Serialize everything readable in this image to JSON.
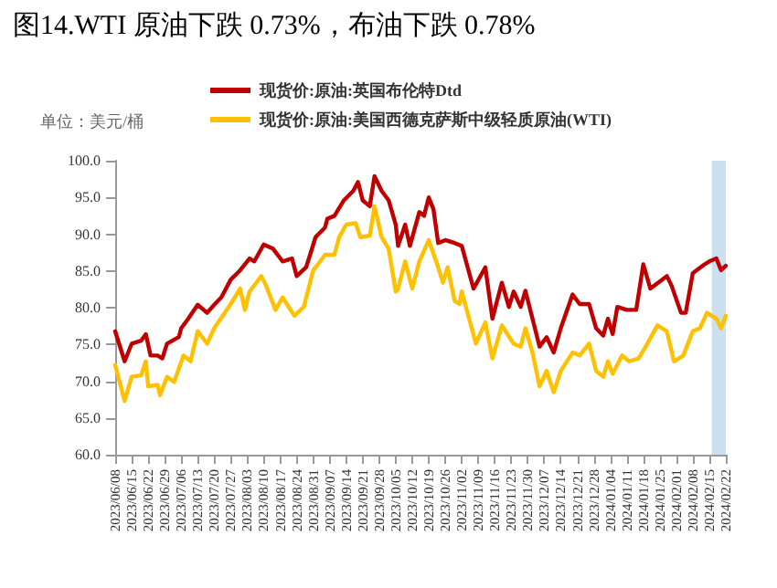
{
  "chart_data": {
    "type": "line",
    "title": "图14.WTI 原油下跌 0.73%，布油下跌 0.78%",
    "annotations": [
      "单位：美元/桶"
    ],
    "legend": "top",
    "marker": "none",
    "line_style": "solid",
    "grid": false,
    "xlim": [
      "2023-06-08",
      "2024-02-22"
    ],
    "xticks": [
      {
        "value": "2023-06-08",
        "label": "2023/06/08"
      },
      {
        "value": "2023-06-15",
        "label": "2023/06/15"
      },
      {
        "value": "2023-06-22",
        "label": "2023/06/22"
      },
      {
        "value": "2023-06-29",
        "label": "2023/06/29"
      },
      {
        "value": "2023-07-06",
        "label": "2023/07/06"
      },
      {
        "value": "2023-07-13",
        "label": "2023/07/13"
      },
      {
        "value": "2023-07-20",
        "label": "2023/07/20"
      },
      {
        "value": "2023-07-27",
        "label": "2023/07/27"
      },
      {
        "value": "2023-08-03",
        "label": "2023/08/03"
      },
      {
        "value": "2023-08-10",
        "label": "2023/08/10"
      },
      {
        "value": "2023-08-17",
        "label": "2023/08/17"
      },
      {
        "value": "2023-08-24",
        "label": "2023/08/24"
      },
      {
        "value": "2023-08-31",
        "label": "2023/08/31"
      },
      {
        "value": "2023-09-07",
        "label": "2023/09/07"
      },
      {
        "value": "2023-09-14",
        "label": "2023/09/14"
      },
      {
        "value": "2023-09-21",
        "label": "2023/09/21"
      },
      {
        "value": "2023-09-28",
        "label": "2023/09/28"
      },
      {
        "value": "2023-10-05",
        "label": "2023/10/05"
      },
      {
        "value": "2023-10-12",
        "label": "2023/10/12"
      },
      {
        "value": "2023-10-19",
        "label": "2023/10/19"
      },
      {
        "value": "2023-10-26",
        "label": "2023/10/26"
      },
      {
        "value": "2023-11-02",
        "label": "2023/11/02"
      },
      {
        "value": "2023-11-09",
        "label": "2023/11/09"
      },
      {
        "value": "2023-11-16",
        "label": "2023/11/16"
      },
      {
        "value": "2023-11-23",
        "label": "2023/11/23"
      },
      {
        "value": "2023-11-30",
        "label": "2023/11/30"
      },
      {
        "value": "2023-12-07",
        "label": "2023/12/07"
      },
      {
        "value": "2023-12-14",
        "label": "2023/12/14"
      },
      {
        "value": "2023-12-21",
        "label": "2023/12/21"
      },
      {
        "value": "2023-12-28",
        "label": "2023/12/28"
      },
      {
        "value": "2024-01-04",
        "label": "2024/01/04"
      },
      {
        "value": "2024-01-11",
        "label": "2024/01/11"
      },
      {
        "value": "2024-01-18",
        "label": "2024/01/18"
      },
      {
        "value": "2024-01-25",
        "label": "2024/01/25"
      },
      {
        "value": "2024-02-01",
        "label": "2024/02/01"
      },
      {
        "value": "2024-02-08",
        "label": "2024/02/08"
      },
      {
        "value": "2024-02-15",
        "label": "2024/02/15"
      },
      {
        "value": "2024-02-22",
        "label": "2024/02/22"
      }
    ],
    "ylim": [
      60,
      100
    ],
    "yticks": [
      {
        "value": 60,
        "label": "60.0"
      },
      {
        "value": 65,
        "label": "65.0"
      },
      {
        "value": 70,
        "label": "70.0"
      },
      {
        "value": 75,
        "label": "75.0"
      },
      {
        "value": 80,
        "label": "80.0"
      },
      {
        "value": 85,
        "label": "85.0"
      },
      {
        "value": 90,
        "label": "90.0"
      },
      {
        "value": 95,
        "label": "95.0"
      },
      {
        "value": 100,
        "label": "100.0"
      }
    ],
    "bands": [
      {
        "axis": "x",
        "from": "2024-02-16",
        "to": "2024-02-22",
        "color": "#c5dcef"
      }
    ],
    "series": [
      {
        "name": "现货价:原油:英国布伦特Dtd",
        "color": "#c00000",
        "x": [
          "2023-06-08",
          "2023-06-12",
          "2023-06-15",
          "2023-06-19",
          "2023-06-21",
          "2023-06-23",
          "2023-06-26",
          "2023-06-28",
          "2023-06-30",
          "2023-07-05",
          "2023-07-06",
          "2023-07-09",
          "2023-07-13",
          "2023-07-17",
          "2023-07-20",
          "2023-07-23",
          "2023-07-27",
          "2023-07-31",
          "2023-08-03",
          "2023-08-04",
          "2023-08-06",
          "2023-08-10",
          "2023-08-14",
          "2023-08-18",
          "2023-08-22",
          "2023-08-24",
          "2023-08-28",
          "2023-09-01",
          "2023-09-05",
          "2023-09-06",
          "2023-09-09",
          "2023-09-13",
          "2023-09-17",
          "2023-09-19",
          "2023-09-21",
          "2023-09-24",
          "2023-09-26",
          "2023-09-29",
          "2023-10-02",
          "2023-10-05",
          "2023-10-06",
          "2023-10-09",
          "2023-10-11",
          "2023-10-15",
          "2023-10-17",
          "2023-10-19",
          "2023-10-21",
          "2023-10-23",
          "2023-10-26",
          "2023-10-30",
          "2023-11-02",
          "2023-11-07",
          "2023-11-12",
          "2023-11-15",
          "2023-11-19",
          "2023-11-22",
          "2023-11-24",
          "2023-11-27",
          "2023-11-29",
          "2023-12-02",
          "2023-12-05",
          "2023-12-08",
          "2023-12-11",
          "2023-12-14",
          "2023-12-19",
          "2023-12-22",
          "2023-12-26",
          "2023-12-29",
          "2024-01-01",
          "2024-01-03",
          "2024-01-05",
          "2024-01-07",
          "2024-01-11",
          "2024-01-15",
          "2024-01-18",
          "2024-01-21",
          "2024-01-28",
          "2024-01-30",
          "2024-02-03",
          "2024-02-05",
          "2024-02-08",
          "2024-02-13",
          "2024-02-15",
          "2024-02-18",
          "2024-02-20",
          "2024-02-22"
        ],
        "values": [
          76.8,
          72.7,
          75.1,
          75.5,
          76.4,
          73.5,
          73.5,
          73.1,
          75.1,
          76.0,
          77.2,
          78.5,
          80.4,
          79.3,
          80.4,
          81.4,
          83.8,
          85.1,
          86.3,
          86.7,
          86.3,
          88.6,
          88.0,
          86.3,
          86.7,
          84.3,
          85.5,
          89.6,
          90.9,
          92.1,
          92.5,
          94.6,
          95.9,
          97.1,
          94.6,
          93.8,
          97.9,
          95.9,
          94.6,
          91.3,
          88.4,
          91.3,
          88.4,
          93.0,
          92.5,
          95.0,
          93.4,
          88.8,
          89.2,
          88.8,
          88.4,
          82.6,
          85.5,
          78.5,
          83.4,
          80.1,
          82.2,
          80.1,
          82.3,
          78.5,
          74.7,
          76.0,
          73.9,
          77.2,
          81.8,
          80.5,
          80.5,
          77.2,
          76.2,
          78.5,
          76.4,
          80.1,
          79.7,
          79.7,
          85.9,
          82.6,
          84.3,
          83.0,
          79.3,
          79.3,
          84.7,
          85.9,
          86.3,
          86.7,
          85.1,
          85.7
        ]
      },
      {
        "name": "现货价:原油:美国西德克萨斯中级轻质原油(WTI)",
        "color": "#ffc000",
        "x": [
          "2023-06-08",
          "2023-06-12",
          "2023-06-15",
          "2023-06-19",
          "2023-06-21",
          "2023-06-22",
          "2023-06-26",
          "2023-06-27",
          "2023-06-30",
          "2023-07-03",
          "2023-07-07",
          "2023-07-10",
          "2023-07-13",
          "2023-07-17",
          "2023-07-20",
          "2023-07-27",
          "2023-07-31",
          "2023-08-02",
          "2023-08-04",
          "2023-08-09",
          "2023-08-11",
          "2023-08-15",
          "2023-08-18",
          "2023-08-23",
          "2023-08-27",
          "2023-08-31",
          "2023-09-02",
          "2023-09-05",
          "2023-09-09",
          "2023-09-11",
          "2023-09-14",
          "2023-09-18",
          "2023-09-20",
          "2023-09-24",
          "2023-09-26",
          "2023-09-29",
          "2023-10-02",
          "2023-10-05",
          "2023-10-06",
          "2023-10-09",
          "2023-10-12",
          "2023-10-15",
          "2023-10-19",
          "2023-10-23",
          "2023-10-25",
          "2023-10-27",
          "2023-10-30",
          "2023-11-01",
          "2023-11-02",
          "2023-11-08",
          "2023-11-12",
          "2023-11-15",
          "2023-11-19",
          "2023-11-24",
          "2023-11-27",
          "2023-11-29",
          "2023-12-02",
          "2023-12-05",
          "2023-12-08",
          "2023-12-11",
          "2023-12-14",
          "2023-12-19",
          "2023-12-22",
          "2023-12-26",
          "2023-12-29",
          "2024-01-01",
          "2024-01-03",
          "2024-01-05",
          "2024-01-09",
          "2024-01-12",
          "2024-01-16",
          "2024-01-19",
          "2024-01-24",
          "2024-01-28",
          "2024-01-31",
          "2024-02-04",
          "2024-02-08",
          "2024-02-11",
          "2024-02-14",
          "2024-02-18",
          "2024-02-20",
          "2024-02-22"
        ],
        "values": [
          72.2,
          67.3,
          70.6,
          70.8,
          72.7,
          69.3,
          69.5,
          68.1,
          70.6,
          69.9,
          73.5,
          72.7,
          76.8,
          75.1,
          77.2,
          80.5,
          82.6,
          79.7,
          82.2,
          84.3,
          83.0,
          79.7,
          81.4,
          78.9,
          80.1,
          85.1,
          85.9,
          87.2,
          87.2,
          89.6,
          91.3,
          91.5,
          89.6,
          89.8,
          93.8,
          89.6,
          88.0,
          82.2,
          82.6,
          86.3,
          82.6,
          86.3,
          89.2,
          85.5,
          83.4,
          85.5,
          80.9,
          80.5,
          82.2,
          75.1,
          78.0,
          73.1,
          77.6,
          75.1,
          74.7,
          77.2,
          73.9,
          69.3,
          71.4,
          68.5,
          71.4,
          73.9,
          73.5,
          75.1,
          71.4,
          70.6,
          72.7,
          71.0,
          73.5,
          72.7,
          73.1,
          74.7,
          77.6,
          76.8,
          72.7,
          73.5,
          76.8,
          77.2,
          79.3,
          78.5,
          77.2,
          78.9
        ]
      }
    ]
  }
}
